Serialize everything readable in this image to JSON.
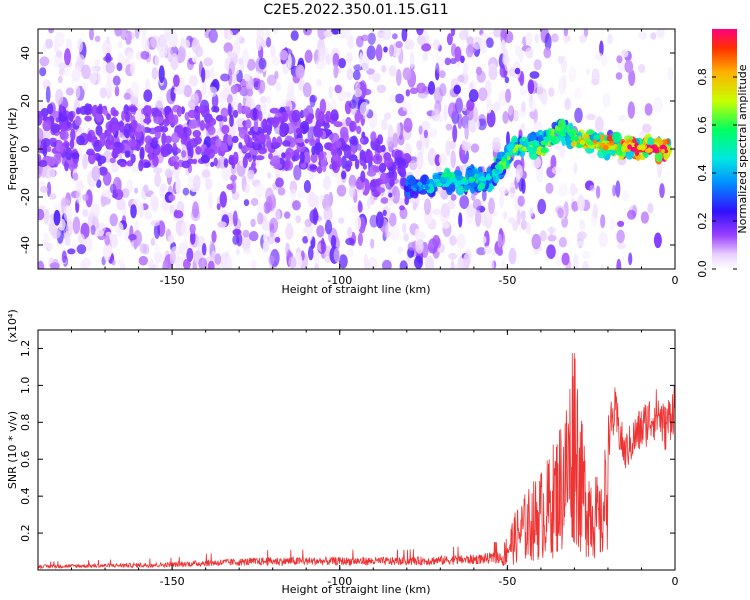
{
  "figure": {
    "title": "C2E5.2022.350.01.15.G11"
  },
  "chart_data": [
    {
      "type": "heatmap",
      "title": "C2E5.2022.350.01.15.G11",
      "xlabel": "Height of straight line (km)",
      "ylabel": "Frequency (Hz)",
      "xlim": [
        -190,
        0
      ],
      "ylim": [
        -50,
        50
      ],
      "x_ticks": [
        -150,
        -100,
        -50,
        0
      ],
      "y_ticks": [
        -40,
        -20,
        0,
        20,
        40
      ],
      "colorbar": {
        "label": "Normalized spectral amplitude",
        "range": [
          0,
          1
        ],
        "ticks": [
          0.0,
          0.2,
          0.4,
          0.6,
          0.8
        ],
        "tick_labels": [
          "0.0",
          "0.2",
          "0.4",
          "0.6",
          "0.8"
        ],
        "colormap": [
          "#ffffff",
          "#e6c8ff",
          "#b070ff",
          "#7a00ff",
          "#2a20ff",
          "#00c8ff",
          "#00ff80",
          "#c8ff00",
          "#ff8000",
          "#ff0040"
        ]
      },
      "ridge": [
        {
          "x": -130,
          "y": 5,
          "amp": 0.25
        },
        {
          "x": -120,
          "y": 5,
          "amp": 0.25
        },
        {
          "x": -100,
          "y": 2,
          "amp": 0.2
        },
        {
          "x": -78,
          "y": -16,
          "amp": 0.35
        },
        {
          "x": -70,
          "y": -14,
          "amp": 0.45
        },
        {
          "x": -62,
          "y": -13,
          "amp": 0.5
        },
        {
          "x": -55,
          "y": -12,
          "amp": 0.45
        },
        {
          "x": -48,
          "y": 0,
          "amp": 0.6
        },
        {
          "x": -40,
          "y": 2,
          "amp": 0.55
        },
        {
          "x": -35,
          "y": 8,
          "amp": 0.6
        },
        {
          "x": -25,
          "y": 2,
          "amp": 0.75
        },
        {
          "x": -15,
          "y": 1,
          "amp": 0.85
        },
        {
          "x": -5,
          "y": 0,
          "amp": 0.95
        }
      ]
    },
    {
      "type": "line",
      "xlabel": "Height of straight line (km)",
      "ylabel": "SNR (10 * v/v)",
      "y_multiplier": "(x10⁴)",
      "xlim": [
        -190,
        0
      ],
      "ylim": [
        0,
        1.3
      ],
      "x_ticks": [
        -150,
        -100,
        -50,
        0
      ],
      "y_ticks": [
        0.2,
        0.4,
        0.6,
        0.8,
        1.0,
        1.2
      ],
      "y_tick_labels": [
        "0.2",
        "0.4",
        "0.6",
        "0.8",
        "1.0",
        "1.2"
      ],
      "color": "#ee3333",
      "envelope": {
        "x": [
          -190,
          -150,
          -140,
          -120,
          -100,
          -80,
          -60,
          -52,
          -50,
          -46,
          -42,
          -38,
          -35,
          -32,
          -30,
          -28,
          -26,
          -24,
          -22,
          -20,
          -18,
          -15,
          -12,
          -8,
          -5,
          -3,
          0
        ],
        "y": [
          0.02,
          0.03,
          0.04,
          0.05,
          0.05,
          0.05,
          0.06,
          0.07,
          0.2,
          0.35,
          0.45,
          0.55,
          0.7,
          0.9,
          1.3,
          0.75,
          0.6,
          0.5,
          0.4,
          0.8,
          0.95,
          0.7,
          0.8,
          0.9,
          0.95,
          0.85,
          1.0
        ]
      }
    }
  ],
  "xlabel_top": "Height of straight line (km)",
  "xlabel_bottom": "Height of straight line (km)",
  "ylabel_top": "Frequency (Hz)",
  "ylabel_bottom": "SNR (10 * v/v)",
  "multiplier_bottom": "(x10⁴)",
  "colorbar_label": "Normalized spectral amplitude"
}
